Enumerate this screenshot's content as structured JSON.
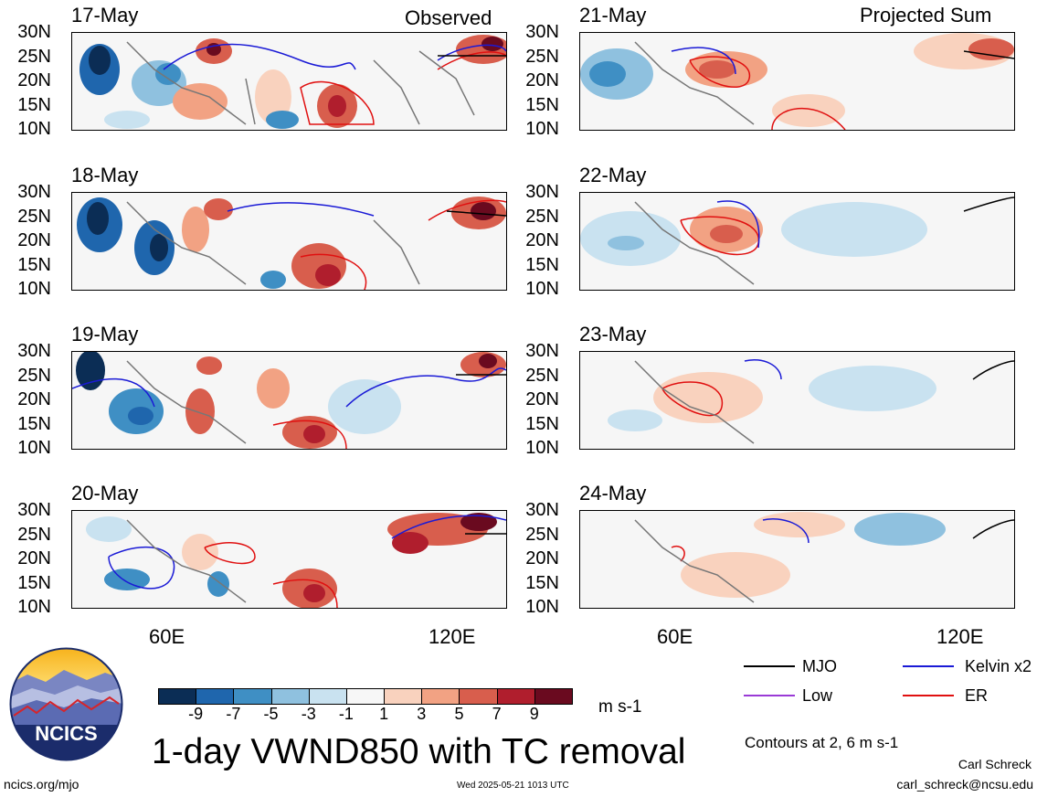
{
  "columns": {
    "left": "Observed",
    "right": "Projected Sum"
  },
  "panels_left": [
    {
      "date": "17-May"
    },
    {
      "date": "18-May"
    },
    {
      "date": "19-May"
    },
    {
      "date": "20-May"
    }
  ],
  "panels_right": [
    {
      "date": "21-May"
    },
    {
      "date": "22-May"
    },
    {
      "date": "23-May"
    },
    {
      "date": "24-May"
    }
  ],
  "lat_labels": [
    "30N",
    "25N",
    "20N",
    "15N",
    "10N"
  ],
  "lon_labels": [
    "60E",
    "120E"
  ],
  "colorbar": {
    "ticks": [
      "-9",
      "-7",
      "-5",
      "-3",
      "-1",
      "1",
      "3",
      "5",
      "7",
      "9"
    ],
    "colors": [
      "#0b2d55",
      "#1f66ad",
      "#3f8fc4",
      "#8fc1df",
      "#c9e2f0",
      "#f7f7f7",
      "#f9d2be",
      "#f2a283",
      "#d85e4d",
      "#b01e2d",
      "#6a0a1f"
    ],
    "unit": "m s-1"
  },
  "title": "1-day VWND850 with TC removal",
  "legend": {
    "items": [
      {
        "label": "MJO",
        "color": "#000000"
      },
      {
        "label": "Kelvin x2",
        "color": "#1a1ad6"
      },
      {
        "label": "Low",
        "color": "#9a3ad6"
      },
      {
        "label": "ER",
        "color": "#e01010"
      }
    ],
    "contours_note": "Contours at 2, 6 m s-1"
  },
  "logo": {
    "text": "NCICS"
  },
  "footer": {
    "left": "ncics.org/mjo",
    "center": "Wed 2025-05-21 1013 UTC",
    "right_name": "Carl Schreck",
    "right_email": "carl_schreck@ncsu.edu"
  }
}
